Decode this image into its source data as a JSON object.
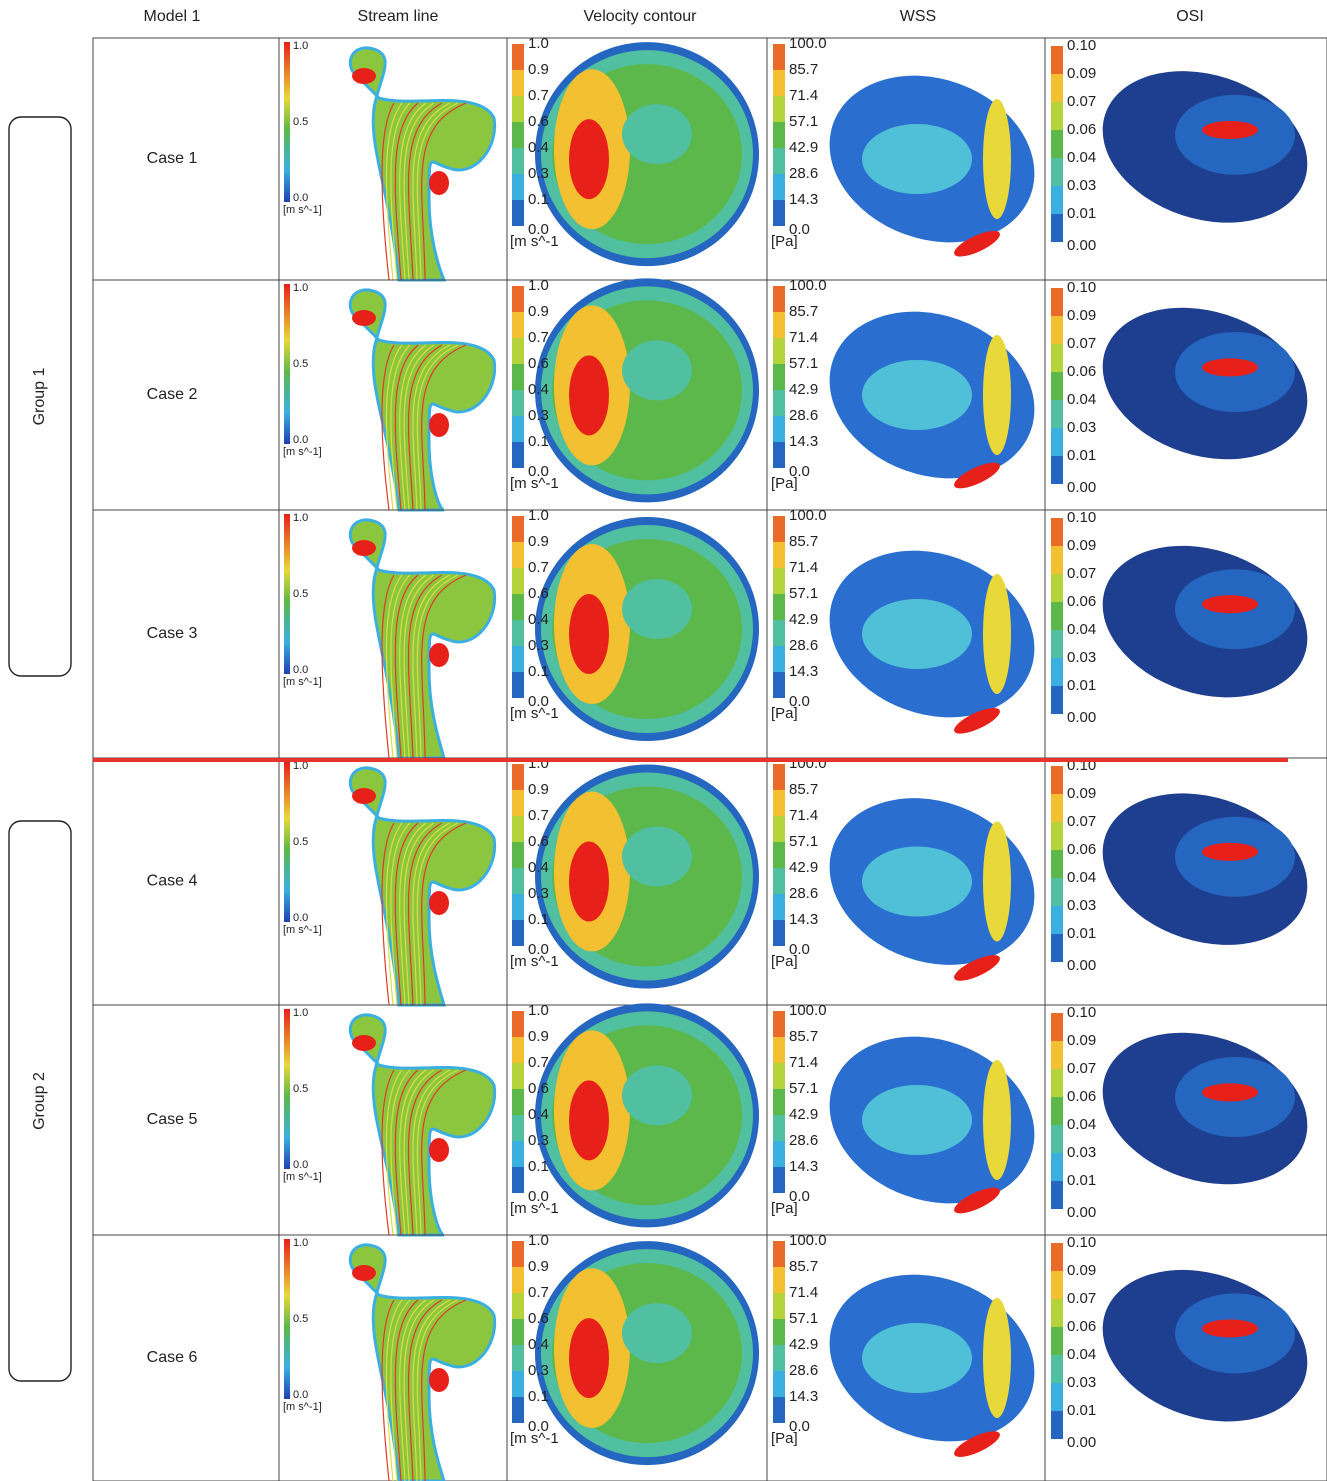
{
  "header": [
    "Model 1",
    "Stream line",
    "Velocity contour",
    "WSS",
    "OSI"
  ],
  "groups": [
    "Group 1",
    "Group 2"
  ],
  "rows": [
    "Case 1",
    "Case 2",
    "Case 3",
    "Case 4",
    "Case 5",
    "Case 6"
  ],
  "legends": {
    "stream_line": {
      "labels": [
        "1.0",
        "0.5",
        "0.0"
      ],
      "unit": "[m s^-1]"
    },
    "velocity": {
      "labels": [
        "1.0",
        "0.9",
        "0.7",
        "0.6",
        "0.4",
        "0.3",
        "0.1",
        "0.0"
      ],
      "unit": "[m s^-1"
    },
    "wss": {
      "labels": [
        "100.0",
        "85.7",
        "71.4",
        "57.1",
        "42.9",
        "28.6",
        "14.3",
        "0.0"
      ],
      "unit": "[Pa]"
    },
    "osi": {
      "labels": [
        "0.10",
        "0.09",
        "0.07",
        "0.06",
        "0.04",
        "0.03",
        "0.01",
        "0.00"
      ]
    }
  }
}
